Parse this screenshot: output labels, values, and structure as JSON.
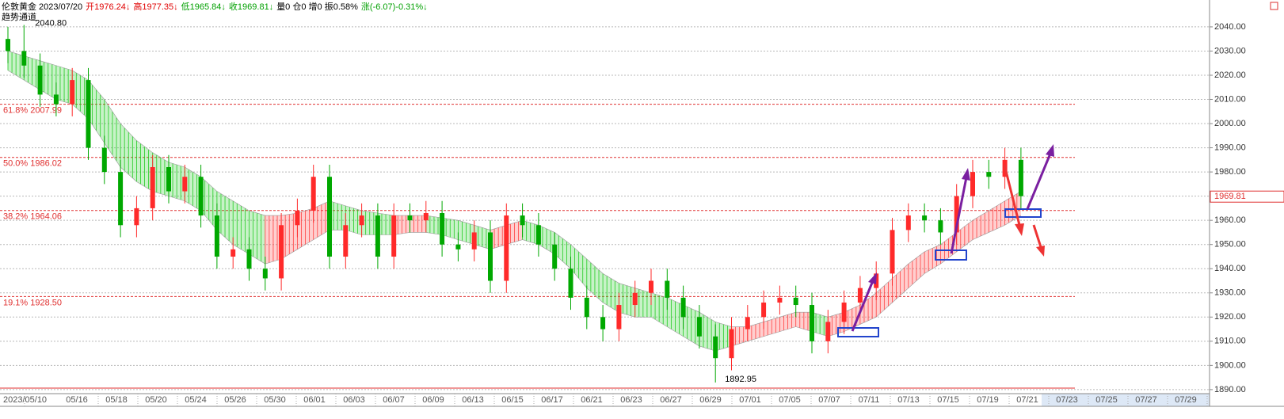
{
  "header": [
    {
      "text": "伦敦黄金 2023/07/20",
      "color": "#000000"
    },
    {
      "text": "开1976.24↓",
      "color": "#e00000"
    },
    {
      "text": "高1977.35↓",
      "color": "#e00000"
    },
    {
      "text": "低1965.84↓",
      "color": "#00a000"
    },
    {
      "text": "收1969.81↓",
      "color": "#00a000"
    },
    {
      "text": "量0 仓0 增0 振0.58%",
      "color": "#000000"
    },
    {
      "text": "涨(-6.07)-0.31%↓",
      "color": "#00a000"
    }
  ],
  "indicator": "趋势通道",
  "chart_data": {
    "type": "candlestick",
    "ylim": [
      1888,
      2048
    ],
    "yticks": [
      {
        "value": 1890,
        "label": "1890.00"
      },
      {
        "value": 1900,
        "label": "1900.00"
      },
      {
        "value": 1910,
        "label": "1910.00"
      },
      {
        "value": 1920,
        "label": "1920.00"
      },
      {
        "value": 1930,
        "label": "1930.00"
      },
      {
        "value": 1940,
        "label": "1940.00"
      },
      {
        "value": 1950,
        "label": "1950.00"
      },
      {
        "value": 1960,
        "label": "1960.00"
      },
      {
        "value": 1970,
        "label": "1970.00"
      },
      {
        "value": 1980,
        "label": "1980.00"
      },
      {
        "value": 1990,
        "label": "1990.00"
      },
      {
        "value": 2000,
        "label": "2000.00"
      },
      {
        "value": 2010,
        "label": "2010.00"
      },
      {
        "value": 2020,
        "label": "2020.00"
      },
      {
        "value": 2030,
        "label": "2030.00"
      },
      {
        "value": 2040,
        "label": "2040.00"
      }
    ],
    "grid": true,
    "x_labels": [
      "2023/05/10",
      "05/16",
      "05/18",
      "05/20",
      "05/24",
      "05/26",
      "05/30",
      "06/01",
      "06/03",
      "06/07",
      "06/09",
      "06/13",
      "06/15",
      "06/17",
      "06/21",
      "06/23",
      "06/27",
      "06/29",
      "07/01",
      "07/05",
      "07/07",
      "07/11",
      "07/13",
      "07/15",
      "07/19",
      "07/21",
      "07/23",
      "07/25",
      "07/27",
      "07/29"
    ],
    "up_color": "#ff2a2a",
    "down_color": "#00a800",
    "open": [
      2035,
      2030,
      2024,
      2012,
      2008,
      2018,
      1990,
      1980,
      1958,
      1965,
      1982,
      1972,
      1978,
      1962,
      1945,
      1948,
      1940,
      1936,
      1958,
      1964,
      1978,
      1945,
      1958,
      1962,
      1945,
      1962,
      1960,
      1963,
      1950,
      1948,
      1955,
      1935,
      1962,
      1958,
      1950,
      1940,
      1928,
      1920,
      1915,
      1925,
      1930,
      1935,
      1928,
      1920,
      1912,
      1903,
      1915,
      1920,
      1926,
      1928,
      1925,
      1910,
      1918,
      1926,
      1932,
      1938,
      1956,
      1962,
      1960,
      1955,
      1970,
      1980,
      1978,
      1985
    ],
    "high": [
      2040,
      2040.8,
      2029,
      2017,
      2023,
      2023,
      1995,
      1985,
      1970,
      1987,
      1987,
      1983,
      1983,
      1967,
      1953,
      1953,
      1945,
      1963,
      1969,
      1983,
      1983,
      1963,
      1967,
      1967,
      1967,
      1967,
      1968,
      1968,
      1955,
      1960,
      1960,
      1967,
      1967,
      1963,
      1955,
      1945,
      1933,
      1925,
      1930,
      1935,
      1940,
      1940,
      1933,
      1925,
      1917,
      1920,
      1925,
      1931,
      1933,
      1933,
      1930,
      1923,
      1931,
      1937,
      1943,
      1961,
      1967,
      1967,
      1965,
      1975,
      1985,
      1985,
      1990,
      1990
    ],
    "low": [
      2025,
      2019,
      2007,
      2003,
      2003,
      1985,
      1975,
      1953,
      1953,
      1960,
      1967,
      1967,
      1957,
      1940,
      1940,
      1935,
      1931,
      1931,
      1953,
      1959,
      1940,
      1940,
      1953,
      1940,
      1940,
      1955,
      1955,
      1945,
      1943,
      1943,
      1930,
      1930,
      1953,
      1945,
      1935,
      1923,
      1915,
      1910,
      1910,
      1920,
      1925,
      1923,
      1915,
      1907,
      1892.95,
      1898,
      1910,
      1915,
      1921,
      1920,
      1905,
      1905,
      1913,
      1921,
      1927,
      1933,
      1951,
      1955,
      1950,
      1950,
      1965,
      1973,
      1973,
      1965
    ],
    "close": [
      2030,
      2024,
      2012,
      2008,
      2018,
      1990,
      1980,
      1958,
      1965,
      1982,
      1972,
      1978,
      1962,
      1945,
      1948,
      1940,
      1936,
      1958,
      1964,
      1978,
      1945,
      1958,
      1962,
      1945,
      1962,
      1960,
      1963,
      1950,
      1948,
      1955,
      1935,
      1962,
      1958,
      1950,
      1940,
      1928,
      1920,
      1915,
      1925,
      1930,
      1935,
      1928,
      1920,
      1912,
      1903,
      1915,
      1920,
      1926,
      1928,
      1925,
      1910,
      1918,
      1926,
      1932,
      1938,
      1956,
      1962,
      1960,
      1955,
      1970,
      1980,
      1978,
      1985,
      1970
    ],
    "channel": {
      "upper": [
        2030,
        2028,
        2026,
        2024,
        2022,
        2018,
        2010,
        2000,
        1993,
        1988,
        1984,
        1982,
        1978,
        1972,
        1968,
        1964,
        1962,
        1962,
        1963,
        1965,
        1968,
        1966,
        1964,
        1963,
        1962,
        1962,
        1962,
        1961,
        1960,
        1958,
        1956,
        1958,
        1960,
        1958,
        1955,
        1950,
        1944,
        1938,
        1934,
        1932,
        1930,
        1928,
        1925,
        1922,
        1918,
        1916,
        1916,
        1918,
        1920,
        1922,
        1922,
        1920,
        1922,
        1925,
        1930,
        1936,
        1942,
        1947,
        1950,
        1955,
        1960,
        1964,
        1968,
        1972
      ],
      "lower": [
        2022,
        2018,
        2014,
        2010,
        2008,
        2002,
        1992,
        1982,
        1976,
        1972,
        1970,
        1968,
        1964,
        1956,
        1950,
        1946,
        1942,
        1944,
        1948,
        1952,
        1956,
        1956,
        1954,
        1954,
        1954,
        1955,
        1955,
        1954,
        1952,
        1950,
        1948,
        1950,
        1952,
        1950,
        1946,
        1940,
        1932,
        1926,
        1922,
        1920,
        1920,
        1916,
        1912,
        1908,
        1906,
        1908,
        1910,
        1912,
        1914,
        1916,
        1914,
        1912,
        1914,
        1917,
        1920,
        1926,
        1932,
        1938,
        1942,
        1947,
        1952,
        1955,
        1958,
        1962
      ],
      "rise_color": "#ff4040",
      "fall_color": "#22cc22"
    },
    "fib_levels": [
      {
        "value": 2007.99,
        "label": "61.8% 2007.99"
      },
      {
        "value": 1986.02,
        "label": "50.0% 1986.02"
      },
      {
        "value": 1964.06,
        "label": "38.2% 1964.06"
      },
      {
        "value": 1928.5,
        "label": "19.1% 1928.50"
      }
    ],
    "high_label": {
      "value": 2040.8,
      "label": "2040.80"
    },
    "low_label": {
      "value": 1892.95,
      "label": "1892.95"
    },
    "last_price": {
      "value": 1969.81,
      "label": "1969.81"
    }
  }
}
